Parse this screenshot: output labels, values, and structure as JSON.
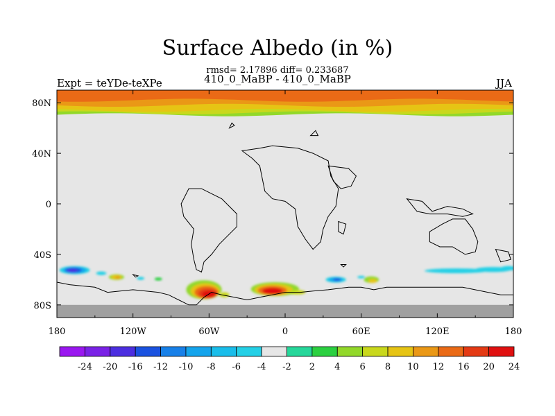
{
  "header": {
    "title": "Surface Albedo (in %)",
    "stats": "rmsd= 2.17896 diff= 0.233687",
    "subtitle": "410_0_MaBP - 410_0_MaBP",
    "left_label": "Expt = teYDe-teXPe",
    "right_label": "JJA"
  },
  "chart_data": {
    "type": "heatmap",
    "title": "Surface Albedo (in %)",
    "xlabel": "",
    "ylabel": "",
    "xlim": [
      -180,
      180
    ],
    "ylim": [
      -90,
      90
    ],
    "x_ticks": [
      {
        "value": -180,
        "label": "180"
      },
      {
        "value": -120,
        "label": "120W"
      },
      {
        "value": -60,
        "label": "60W"
      },
      {
        "value": 0,
        "label": "0"
      },
      {
        "value": 60,
        "label": "60E"
      },
      {
        "value": 120,
        "label": "120E"
      },
      {
        "value": 180,
        "label": "180"
      }
    ],
    "y_ticks": [
      {
        "value": 80,
        "label": "80N"
      },
      {
        "value": 40,
        "label": "40N"
      },
      {
        "value": 0,
        "label": "0"
      },
      {
        "value": -40,
        "label": "40S"
      },
      {
        "value": -80,
        "label": "80S"
      }
    ],
    "colorbar": {
      "labels": [
        "-24",
        "-20",
        "-16",
        "-12",
        "-10",
        "-8",
        "-6",
        "-4",
        "-2",
        "2",
        "4",
        "6",
        "8",
        "10",
        "12",
        "16",
        "20",
        "24"
      ],
      "colors": [
        "#9a17f0",
        "#7a22e6",
        "#4c2ee0",
        "#1a52e0",
        "#1780e8",
        "#14a4ec",
        "#19bdea",
        "#24d0e6",
        "#e6e6e6",
        "#26d79a",
        "#2bd040",
        "#92d82a",
        "#c9d81c",
        "#e6c414",
        "#ea9816",
        "#ea6a16",
        "#e43a14",
        "#e01010"
      ]
    },
    "background_color": "#e6e6e6",
    "missing_color": "#a0a0a0",
    "features": [
      {
        "name": "arctic-band",
        "lon": [
          -180,
          180
        ],
        "lat": [
          70,
          90
        ],
        "value": "8 to 20"
      },
      {
        "name": "patch-south-pacific",
        "lon": [
          -170,
          -160
        ],
        "lat": [
          -55,
          -50
        ],
        "value": -16
      },
      {
        "name": "patch-south-america-1",
        "lon": [
          -138,
          -127
        ],
        "lat": [
          -62,
          -56
        ],
        "value": 10
      },
      {
        "name": "patch-southern-ocean-1",
        "lon": [
          -72,
          -50
        ],
        "lat": [
          -76,
          -60
        ],
        "value": 24
      },
      {
        "name": "patch-southern-ocean-2",
        "lon": [
          -22,
          10
        ],
        "lat": [
          -74,
          -62
        ],
        "value": 24
      },
      {
        "name": "patch-south-indian",
        "lon": [
          38,
          45
        ],
        "lat": [
          -63,
          -57
        ],
        "value": -12
      },
      {
        "name": "patch-south-indian-2",
        "lon": [
          65,
          73
        ],
        "lat": [
          -64,
          -57
        ],
        "value": 10
      },
      {
        "name": "patch-australia-south",
        "lon": [
          108,
          180
        ],
        "lat": [
          -57,
          -48
        ],
        "value": -4
      }
    ]
  }
}
